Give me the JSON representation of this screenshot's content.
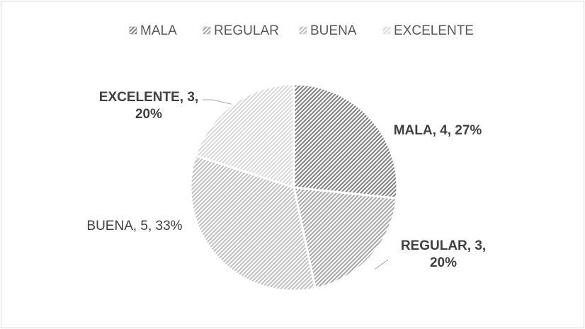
{
  "chart_data": {
    "type": "pie",
    "categories": [
      "MALA",
      "REGULAR",
      "BUENA",
      "EXCELENTE"
    ],
    "values": [
      4,
      3,
      5,
      3
    ],
    "value_labels": [
      "MALA, 4, 27%",
      "REGULAR, 3, 20%",
      "BUENA, 5, 33%",
      "EXCELENTE, 3, 20%"
    ],
    "colors": [
      "#7f7f7f",
      "#a6a6a6",
      "#bfbfbf",
      "#d9d9d9"
    ],
    "bold_labels": [
      true,
      true,
      false,
      true
    ],
    "legend": "top"
  }
}
